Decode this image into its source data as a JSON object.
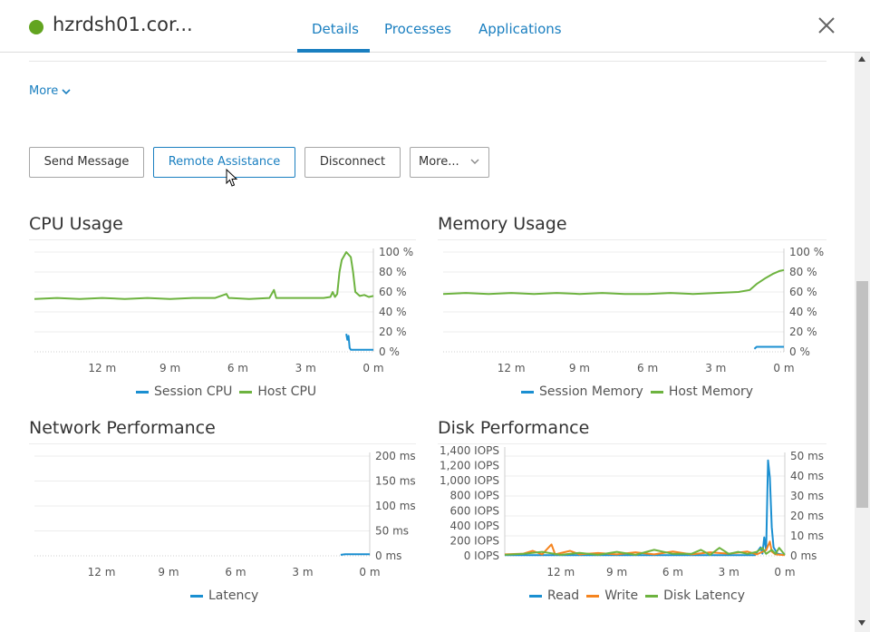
{
  "header": {
    "title": "hzrdsh01.cor...",
    "status_color": "#62a420",
    "tabs": [
      {
        "label": "Details",
        "active": true
      },
      {
        "label": "Processes",
        "active": false
      },
      {
        "label": "Applications",
        "active": false
      }
    ],
    "close_icon": "close-icon"
  },
  "more_link": "More",
  "actions": {
    "send_message": "Send Message",
    "remote_assistance": "Remote Assistance",
    "disconnect": "Disconnect",
    "more": "More..."
  },
  "colors": {
    "accent": "#1a7fc0",
    "session": "#1a8fd1",
    "host": "#6db33f",
    "write": "#f5841f"
  },
  "charts": {
    "cpu": {
      "title": "CPU Usage"
    },
    "memory": {
      "title": "Memory Usage"
    },
    "network": {
      "title": "Network Performance"
    },
    "disk": {
      "title": "Disk Performance"
    }
  },
  "chart_data": [
    {
      "type": "line",
      "title": "CPU Usage",
      "x_ticks": [
        "12 m",
        "9 m",
        "6 m",
        "3 m",
        "0 m"
      ],
      "y_ticks": [
        "100 %",
        "80 %",
        "60 %",
        "40 %",
        "20 %",
        "0 %"
      ],
      "ylim": [
        0,
        100
      ],
      "series": [
        {
          "name": "Session CPU",
          "color": "#1a8fd1",
          "points": [
            [
              -1.2,
              18
            ],
            [
              -1.15,
              12
            ],
            [
              -1.1,
              16
            ],
            [
              -1.05,
              4
            ],
            [
              -1.0,
              2
            ],
            [
              -0.6,
              2
            ],
            [
              0,
              2
            ]
          ]
        },
        {
          "name": "Host CPU",
          "color": "#6db33f",
          "points": [
            [
              -15,
              53
            ],
            [
              -14,
              54
            ],
            [
              -13,
              53
            ],
            [
              -12,
              54
            ],
            [
              -11,
              53
            ],
            [
              -10,
              54
            ],
            [
              -9,
              53
            ],
            [
              -8,
              54
            ],
            [
              -7,
              54
            ],
            [
              -6.5,
              58
            ],
            [
              -6.4,
              54
            ],
            [
              -5.5,
              53
            ],
            [
              -4.6,
              54
            ],
            [
              -4.4,
              62
            ],
            [
              -4.3,
              54
            ],
            [
              -3,
              54
            ],
            [
              -2.2,
              54
            ],
            [
              -1.9,
              55
            ],
            [
              -1.8,
              60
            ],
            [
              -1.7,
              55
            ],
            [
              -1.6,
              58
            ],
            [
              -1.5,
              80
            ],
            [
              -1.4,
              92
            ],
            [
              -1.2,
              100
            ],
            [
              -1.0,
              95
            ],
            [
              -0.9,
              80
            ],
            [
              -0.8,
              60
            ],
            [
              -0.6,
              56
            ],
            [
              -0.4,
              57
            ],
            [
              -0.2,
              55
            ],
            [
              0,
              56
            ]
          ]
        }
      ],
      "legend": [
        "Session CPU",
        "Host CPU"
      ]
    },
    {
      "type": "line",
      "title": "Memory Usage",
      "x_ticks": [
        "12 m",
        "9 m",
        "6 m",
        "3 m",
        "0 m"
      ],
      "y_ticks": [
        "100 %",
        "80 %",
        "60 %",
        "40 %",
        "20 %",
        "0 %"
      ],
      "ylim": [
        0,
        100
      ],
      "series": [
        {
          "name": "Session Memory",
          "color": "#1a8fd1",
          "points": [
            [
              -1.3,
              3
            ],
            [
              -1.2,
              5
            ],
            [
              0,
              5
            ]
          ]
        },
        {
          "name": "Host Memory",
          "color": "#6db33f",
          "points": [
            [
              -15,
              58
            ],
            [
              -14,
              59
            ],
            [
              -13,
              58
            ],
            [
              -12,
              59
            ],
            [
              -11,
              58
            ],
            [
              -10,
              59
            ],
            [
              -9,
              58
            ],
            [
              -8,
              59
            ],
            [
              -7,
              58
            ],
            [
              -6,
              58
            ],
            [
              -5,
              59
            ],
            [
              -4,
              58
            ],
            [
              -3,
              59
            ],
            [
              -2,
              60
            ],
            [
              -1.5,
              62
            ],
            [
              -1.2,
              68
            ],
            [
              -0.8,
              74
            ],
            [
              -0.5,
              78
            ],
            [
              -0.2,
              81
            ],
            [
              0,
              82
            ]
          ]
        }
      ],
      "legend": [
        "Session Memory",
        "Host Memory"
      ]
    },
    {
      "type": "line",
      "title": "Network Performance",
      "x_ticks": [
        "12 m",
        "9 m",
        "6 m",
        "3 m",
        "0 m"
      ],
      "y_ticks": [
        "200 ms",
        "150 ms",
        "100 ms",
        "50 ms",
        "0 ms"
      ],
      "ylim": [
        0,
        200
      ],
      "series": [
        {
          "name": "Latency",
          "color": "#1a8fd1",
          "points": [
            [
              -1.3,
              2
            ],
            [
              -1.1,
              3
            ],
            [
              0,
              3
            ]
          ]
        }
      ],
      "legend": [
        "Latency"
      ]
    },
    {
      "type": "line",
      "title": "Disk Performance",
      "x_ticks": [
        "12 m",
        "9 m",
        "6 m",
        "3 m",
        "0 m"
      ],
      "y_ticks_left": [
        "1,400 IOPS",
        "1,200 IOPS",
        "1,000 IOPS",
        "800 IOPS",
        "600 IOPS",
        "400 IOPS",
        "200 IOPS",
        "0 IOPS"
      ],
      "y_ticks_right": [
        "50 ms",
        "40 ms",
        "30 ms",
        "20 ms",
        "10 ms",
        "0 ms"
      ],
      "ylim_left": [
        0,
        1400
      ],
      "ylim_right": [
        0,
        50
      ],
      "series": [
        {
          "name": "Read",
          "color": "#1a8fd1",
          "axis": "left",
          "points": [
            [
              -15,
              10
            ],
            [
              -12,
              10
            ],
            [
              -9,
              10
            ],
            [
              -6,
              10
            ],
            [
              -3,
              10
            ],
            [
              -1.6,
              10
            ],
            [
              -1.3,
              120
            ],
            [
              -1.2,
              30
            ],
            [
              -1.1,
              260
            ],
            [
              -1.0,
              80
            ],
            [
              -0.9,
              1340
            ],
            [
              -0.8,
              1100
            ],
            [
              -0.7,
              400
            ],
            [
              -0.6,
              120
            ],
            [
              -0.4,
              30
            ],
            [
              -0.2,
              20
            ],
            [
              0,
              10
            ]
          ]
        },
        {
          "name": "Write",
          "color": "#f5841f",
          "axis": "left",
          "points": [
            [
              -15,
              20
            ],
            [
              -14,
              30
            ],
            [
              -13.5,
              70
            ],
            [
              -13,
              20
            ],
            [
              -12.5,
              160
            ],
            [
              -12.3,
              20
            ],
            [
              -11.5,
              70
            ],
            [
              -11,
              20
            ],
            [
              -10,
              40
            ],
            [
              -9,
              20
            ],
            [
              -8,
              50
            ],
            [
              -7,
              20
            ],
            [
              -6,
              60
            ],
            [
              -5,
              20
            ],
            [
              -4,
              50
            ],
            [
              -3,
              30
            ],
            [
              -2,
              60
            ],
            [
              -1.5,
              20
            ],
            [
              -1.0,
              80
            ],
            [
              -0.8,
              200
            ],
            [
              -0.7,
              60
            ],
            [
              -0.5,
              20
            ],
            [
              0,
              10
            ]
          ]
        },
        {
          "name": "Disk Latency",
          "color": "#6db33f",
          "axis": "right",
          "points": [
            [
              -15,
              0.5
            ],
            [
              -14,
              1
            ],
            [
              -13,
              2
            ],
            [
              -12,
              0.5
            ],
            [
              -11,
              1.5
            ],
            [
              -10,
              0.5
            ],
            [
              -9,
              2
            ],
            [
              -8,
              0.5
            ],
            [
              -7,
              3
            ],
            [
              -6,
              1
            ],
            [
              -5,
              1
            ],
            [
              -4.5,
              3
            ],
            [
              -4,
              0.5
            ],
            [
              -3.5,
              4
            ],
            [
              -3,
              1
            ],
            [
              -2.5,
              2
            ],
            [
              -2,
              1
            ],
            [
              -1.5,
              2
            ],
            [
              -1.2,
              4
            ],
            [
              -1.0,
              1
            ],
            [
              -0.7,
              3
            ],
            [
              -0.5,
              1
            ],
            [
              -0.3,
              4
            ],
            [
              0,
              0.5
            ]
          ]
        }
      ],
      "legend": [
        "Read",
        "Write",
        "Disk Latency"
      ]
    }
  ]
}
